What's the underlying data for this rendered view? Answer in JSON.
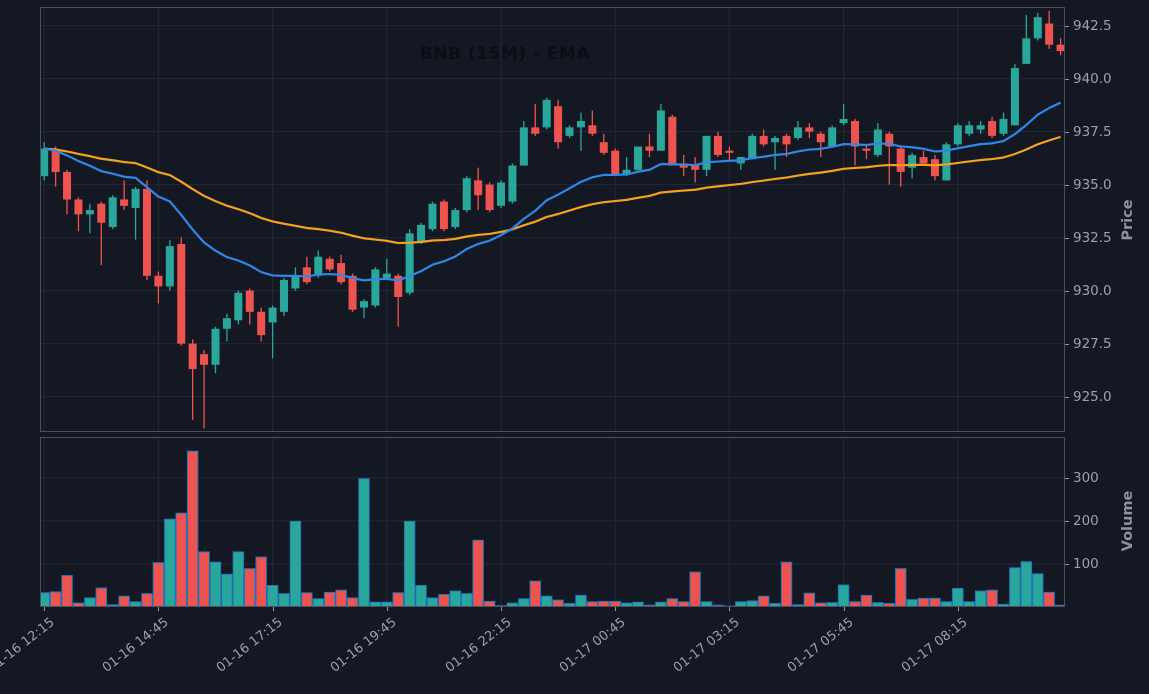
{
  "chart_data": {
    "type": "candlestick",
    "title": "BNB (15M) - EMA",
    "symbol": "BNB",
    "interval": "15M",
    "overlay": "EMA",
    "legend_position": "none",
    "grid": true,
    "price_axis": {
      "label": "Price",
      "side": "right",
      "ticks": [
        925.0,
        927.5,
        930.0,
        932.5,
        935.0,
        937.5,
        940.0,
        942.5
      ],
      "range": [
        923.33,
        943.38
      ]
    },
    "volume_axis": {
      "label": "Volume",
      "side": "right",
      "ticks": [
        100,
        200,
        300
      ],
      "range": [
        0,
        395
      ]
    },
    "x_ticks": {
      "indices": [
        0,
        10,
        20,
        30,
        40,
        50,
        60,
        70,
        80
      ],
      "labels": [
        "01-16 12:15",
        "01-16 14:45",
        "01-16 17:15",
        "01-16 19:45",
        "01-16 22:15",
        "01-17 00:45",
        "01-17 03:15",
        "01-17 05:45",
        "01-17 08:15"
      ]
    },
    "ema": {
      "fast_span": 20,
      "slow_span": 50
    },
    "colors": {
      "up": "#2aa79b",
      "down": "#ef5350",
      "ema_fast": "#2f88e8",
      "ema_slow": "#f5a11f",
      "background": "#141822",
      "grid": "#232836",
      "spine": "#4a505e",
      "tick_text": "#9da1ac",
      "volume_edge": "#2278bd",
      "title_text": "#0a0d15"
    },
    "candle_columns": [
      "open",
      "high",
      "low",
      "close",
      "volume"
    ],
    "candles": [
      [
        935.4,
        937.0,
        935.2,
        936.7,
        33
      ],
      [
        936.6,
        936.8,
        934.9,
        935.6,
        35
      ],
      [
        935.6,
        935.7,
        933.6,
        934.3,
        73
      ],
      [
        934.3,
        934.4,
        932.8,
        933.6,
        9
      ],
      [
        933.6,
        934.1,
        932.7,
        933.8,
        21
      ],
      [
        934.1,
        934.2,
        931.2,
        933.2,
        44
      ],
      [
        933.0,
        934.5,
        932.9,
        934.4,
        5
      ],
      [
        934.3,
        935.2,
        933.8,
        934.0,
        25
      ],
      [
        933.9,
        934.9,
        932.4,
        934.8,
        12
      ],
      [
        934.8,
        935.2,
        930.5,
        930.7,
        31
      ],
      [
        930.7,
        930.9,
        929.4,
        930.2,
        103
      ],
      [
        930.2,
        932.4,
        930.0,
        932.1,
        204
      ],
      [
        932.2,
        932.5,
        927.4,
        927.5,
        218
      ],
      [
        927.5,
        927.7,
        923.9,
        926.3,
        362
      ],
      [
        927.0,
        927.2,
        923.5,
        926.5,
        128
      ],
      [
        926.5,
        928.3,
        926.1,
        928.2,
        104
      ],
      [
        928.2,
        928.9,
        927.6,
        928.7,
        76
      ],
      [
        928.6,
        930.0,
        928.4,
        929.9,
        128
      ],
      [
        930.0,
        930.1,
        928.4,
        929.0,
        89
      ],
      [
        929.0,
        929.2,
        927.6,
        927.9,
        116
      ],
      [
        928.5,
        929.3,
        926.8,
        929.2,
        50
      ],
      [
        929.0,
        930.6,
        928.8,
        930.5,
        31
      ],
      [
        930.1,
        931.1,
        930.0,
        930.7,
        199
      ],
      [
        931.1,
        931.6,
        930.3,
        930.4,
        33
      ],
      [
        930.7,
        931.9,
        930.6,
        931.6,
        19
      ],
      [
        931.5,
        931.6,
        930.9,
        931.0,
        34
      ],
      [
        931.3,
        931.7,
        930.3,
        930.4,
        39
      ],
      [
        930.7,
        930.8,
        929.0,
        929.1,
        21
      ],
      [
        929.2,
        929.6,
        928.7,
        929.5,
        298
      ],
      [
        929.3,
        931.1,
        929.2,
        931.0,
        11
      ],
      [
        930.6,
        931.5,
        930.5,
        930.8,
        11
      ],
      [
        930.7,
        930.8,
        928.3,
        929.7,
        33
      ],
      [
        929.9,
        932.9,
        929.8,
        932.7,
        199
      ],
      [
        932.3,
        933.2,
        932.2,
        933.1,
        50
      ],
      [
        932.9,
        934.2,
        932.8,
        934.1,
        21
      ],
      [
        934.2,
        934.3,
        932.8,
        932.9,
        29
      ],
      [
        933.0,
        933.9,
        932.9,
        933.8,
        37
      ],
      [
        933.8,
        935.4,
        933.7,
        935.3,
        31
      ],
      [
        935.2,
        935.8,
        933.8,
        934.5,
        155
      ],
      [
        935.0,
        935.1,
        933.7,
        933.8,
        13
      ],
      [
        934.0,
        935.2,
        933.9,
        935.1,
        3
      ],
      [
        934.2,
        936.0,
        934.1,
        935.9,
        9
      ],
      [
        935.9,
        938.0,
        935.9,
        937.7,
        19
      ],
      [
        937.7,
        938.8,
        937.3,
        937.4,
        60
      ],
      [
        937.7,
        939.1,
        937.6,
        939.0,
        25
      ],
      [
        938.7,
        939.0,
        936.7,
        937.0,
        16
      ],
      [
        937.3,
        937.8,
        937.2,
        937.7,
        8
      ],
      [
        937.7,
        938.4,
        936.6,
        938.0,
        27
      ],
      [
        937.8,
        938.5,
        937.3,
        937.4,
        12
      ],
      [
        937.0,
        937.4,
        936.4,
        936.5,
        13
      ],
      [
        936.6,
        936.7,
        935.4,
        935.5,
        13
      ],
      [
        935.5,
        936.3,
        935.4,
        935.7,
        9
      ],
      [
        935.7,
        936.8,
        935.6,
        936.8,
        11
      ],
      [
        936.8,
        937.4,
        936.3,
        936.6,
        4
      ],
      [
        936.6,
        938.8,
        936.6,
        938.5,
        11
      ],
      [
        938.2,
        938.3,
        935.9,
        935.9,
        19
      ],
      [
        936.0,
        936.4,
        935.4,
        935.8,
        12
      ],
      [
        935.9,
        936.3,
        935.1,
        935.7,
        81
      ],
      [
        935.7,
        937.3,
        935.4,
        937.3,
        12
      ],
      [
        937.3,
        937.5,
        936.3,
        936.4,
        4
      ],
      [
        936.6,
        936.8,
        936.1,
        936.5,
        2
      ],
      [
        936.0,
        936.3,
        935.7,
        936.3,
        12
      ],
      [
        936.2,
        937.4,
        936.2,
        937.3,
        14
      ],
      [
        937.3,
        937.6,
        936.8,
        936.9,
        25
      ],
      [
        937.0,
        937.3,
        935.7,
        937.2,
        8
      ],
      [
        937.3,
        937.4,
        936.3,
        936.9,
        104
      ],
      [
        937.2,
        938.0,
        937.1,
        937.7,
        5
      ],
      [
        937.7,
        937.9,
        937.2,
        937.5,
        32
      ],
      [
        937.4,
        937.5,
        936.3,
        937.0,
        9
      ],
      [
        936.8,
        937.8,
        936.8,
        937.7,
        10
      ],
      [
        937.9,
        938.8,
        937.8,
        938.1,
        51
      ],
      [
        938.0,
        938.1,
        935.9,
        936.8,
        12
      ],
      [
        936.7,
        936.9,
        936.2,
        936.6,
        27
      ],
      [
        936.4,
        937.9,
        936.3,
        937.6,
        10
      ],
      [
        937.4,
        937.5,
        935.0,
        936.8,
        8
      ],
      [
        936.7,
        936.8,
        934.9,
        935.6,
        89
      ],
      [
        935.8,
        936.5,
        935.3,
        936.4,
        17
      ],
      [
        936.3,
        936.6,
        935.9,
        936.0,
        20
      ],
      [
        936.2,
        936.4,
        935.2,
        935.4,
        20
      ],
      [
        935.2,
        937.0,
        935.2,
        936.9,
        12
      ],
      [
        936.9,
        937.9,
        936.8,
        937.8,
        43
      ],
      [
        937.4,
        938.0,
        937.3,
        937.8,
        12
      ],
      [
        937.6,
        938.0,
        937.4,
        937.8,
        37
      ],
      [
        938.0,
        938.2,
        937.2,
        937.3,
        39
      ],
      [
        937.4,
        938.4,
        937.3,
        938.1,
        6
      ],
      [
        937.8,
        940.7,
        937.8,
        940.5,
        91
      ],
      [
        940.7,
        943.0,
        940.7,
        941.9,
        105
      ],
      [
        941.9,
        943.1,
        941.8,
        942.9,
        77
      ],
      [
        942.6,
        943.2,
        941.4,
        941.6,
        34
      ],
      [
        941.6,
        941.9,
        941.1,
        941.3,
        4
      ]
    ]
  }
}
